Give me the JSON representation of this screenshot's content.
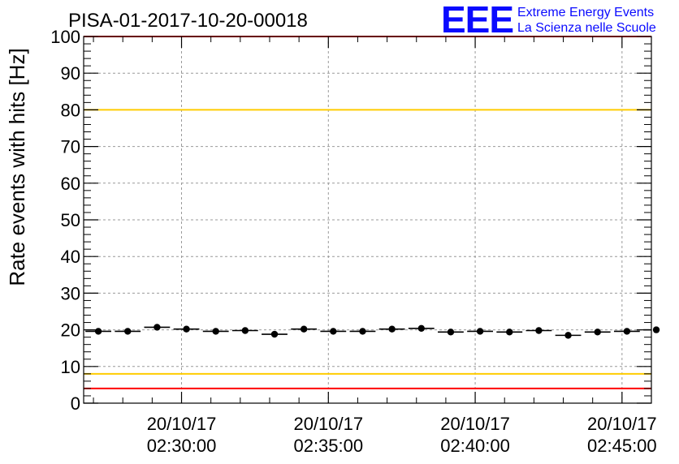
{
  "header": {
    "run_title": "PISA-01-2017-10-20-00018",
    "logo": {
      "mark": "EEE",
      "line1": "Extreme Energy Events",
      "line2": "La Scienza nelle Scuole",
      "color": "#0a0aff"
    }
  },
  "chart_data": {
    "type": "scatter",
    "ylabel": "Rate events with hits [Hz]",
    "xlabel": "",
    "ylim": [
      0,
      100
    ],
    "y_ticks": [
      0,
      10,
      20,
      30,
      40,
      50,
      60,
      70,
      80,
      90,
      100
    ],
    "grid": true,
    "x_time_range_min": [
      "02:26:40",
      "02:46:00"
    ],
    "x_ticks": [
      {
        "date": "20/10/17",
        "time": "02:30:00"
      },
      {
        "date": "20/10/17",
        "time": "02:35:00"
      },
      {
        "date": "20/10/17",
        "time": "02:40:00"
      },
      {
        "date": "20/10/17",
        "time": "02:45:00"
      }
    ],
    "series": [
      {
        "x": [
          "02:27:10",
          "02:28:10",
          "02:29:10",
          "02:30:10",
          "02:31:10",
          "02:32:10",
          "02:33:10",
          "02:34:10",
          "02:35:10",
          "02:36:10",
          "02:37:10",
          "02:38:10",
          "02:39:10",
          "02:40:10",
          "02:41:10",
          "02:42:10",
          "02:43:10",
          "02:44:10",
          "02:45:10",
          "02:46:10"
        ],
        "y": [
          19.6,
          19.6,
          20.7,
          20.2,
          19.6,
          19.8,
          18.8,
          20.2,
          19.6,
          19.6,
          20.2,
          20.4,
          19.4,
          19.6,
          19.4,
          19.8,
          18.5,
          19.4,
          19.6,
          20.0
        ],
        "color": "#000000"
      }
    ],
    "reference_lines": [
      {
        "y": 100,
        "color": "#ff0000"
      },
      {
        "y": 80,
        "color": "#ffcc00"
      },
      {
        "y": 8,
        "color": "#ffcc00"
      },
      {
        "y": 4,
        "color": "#ff0000"
      }
    ]
  }
}
